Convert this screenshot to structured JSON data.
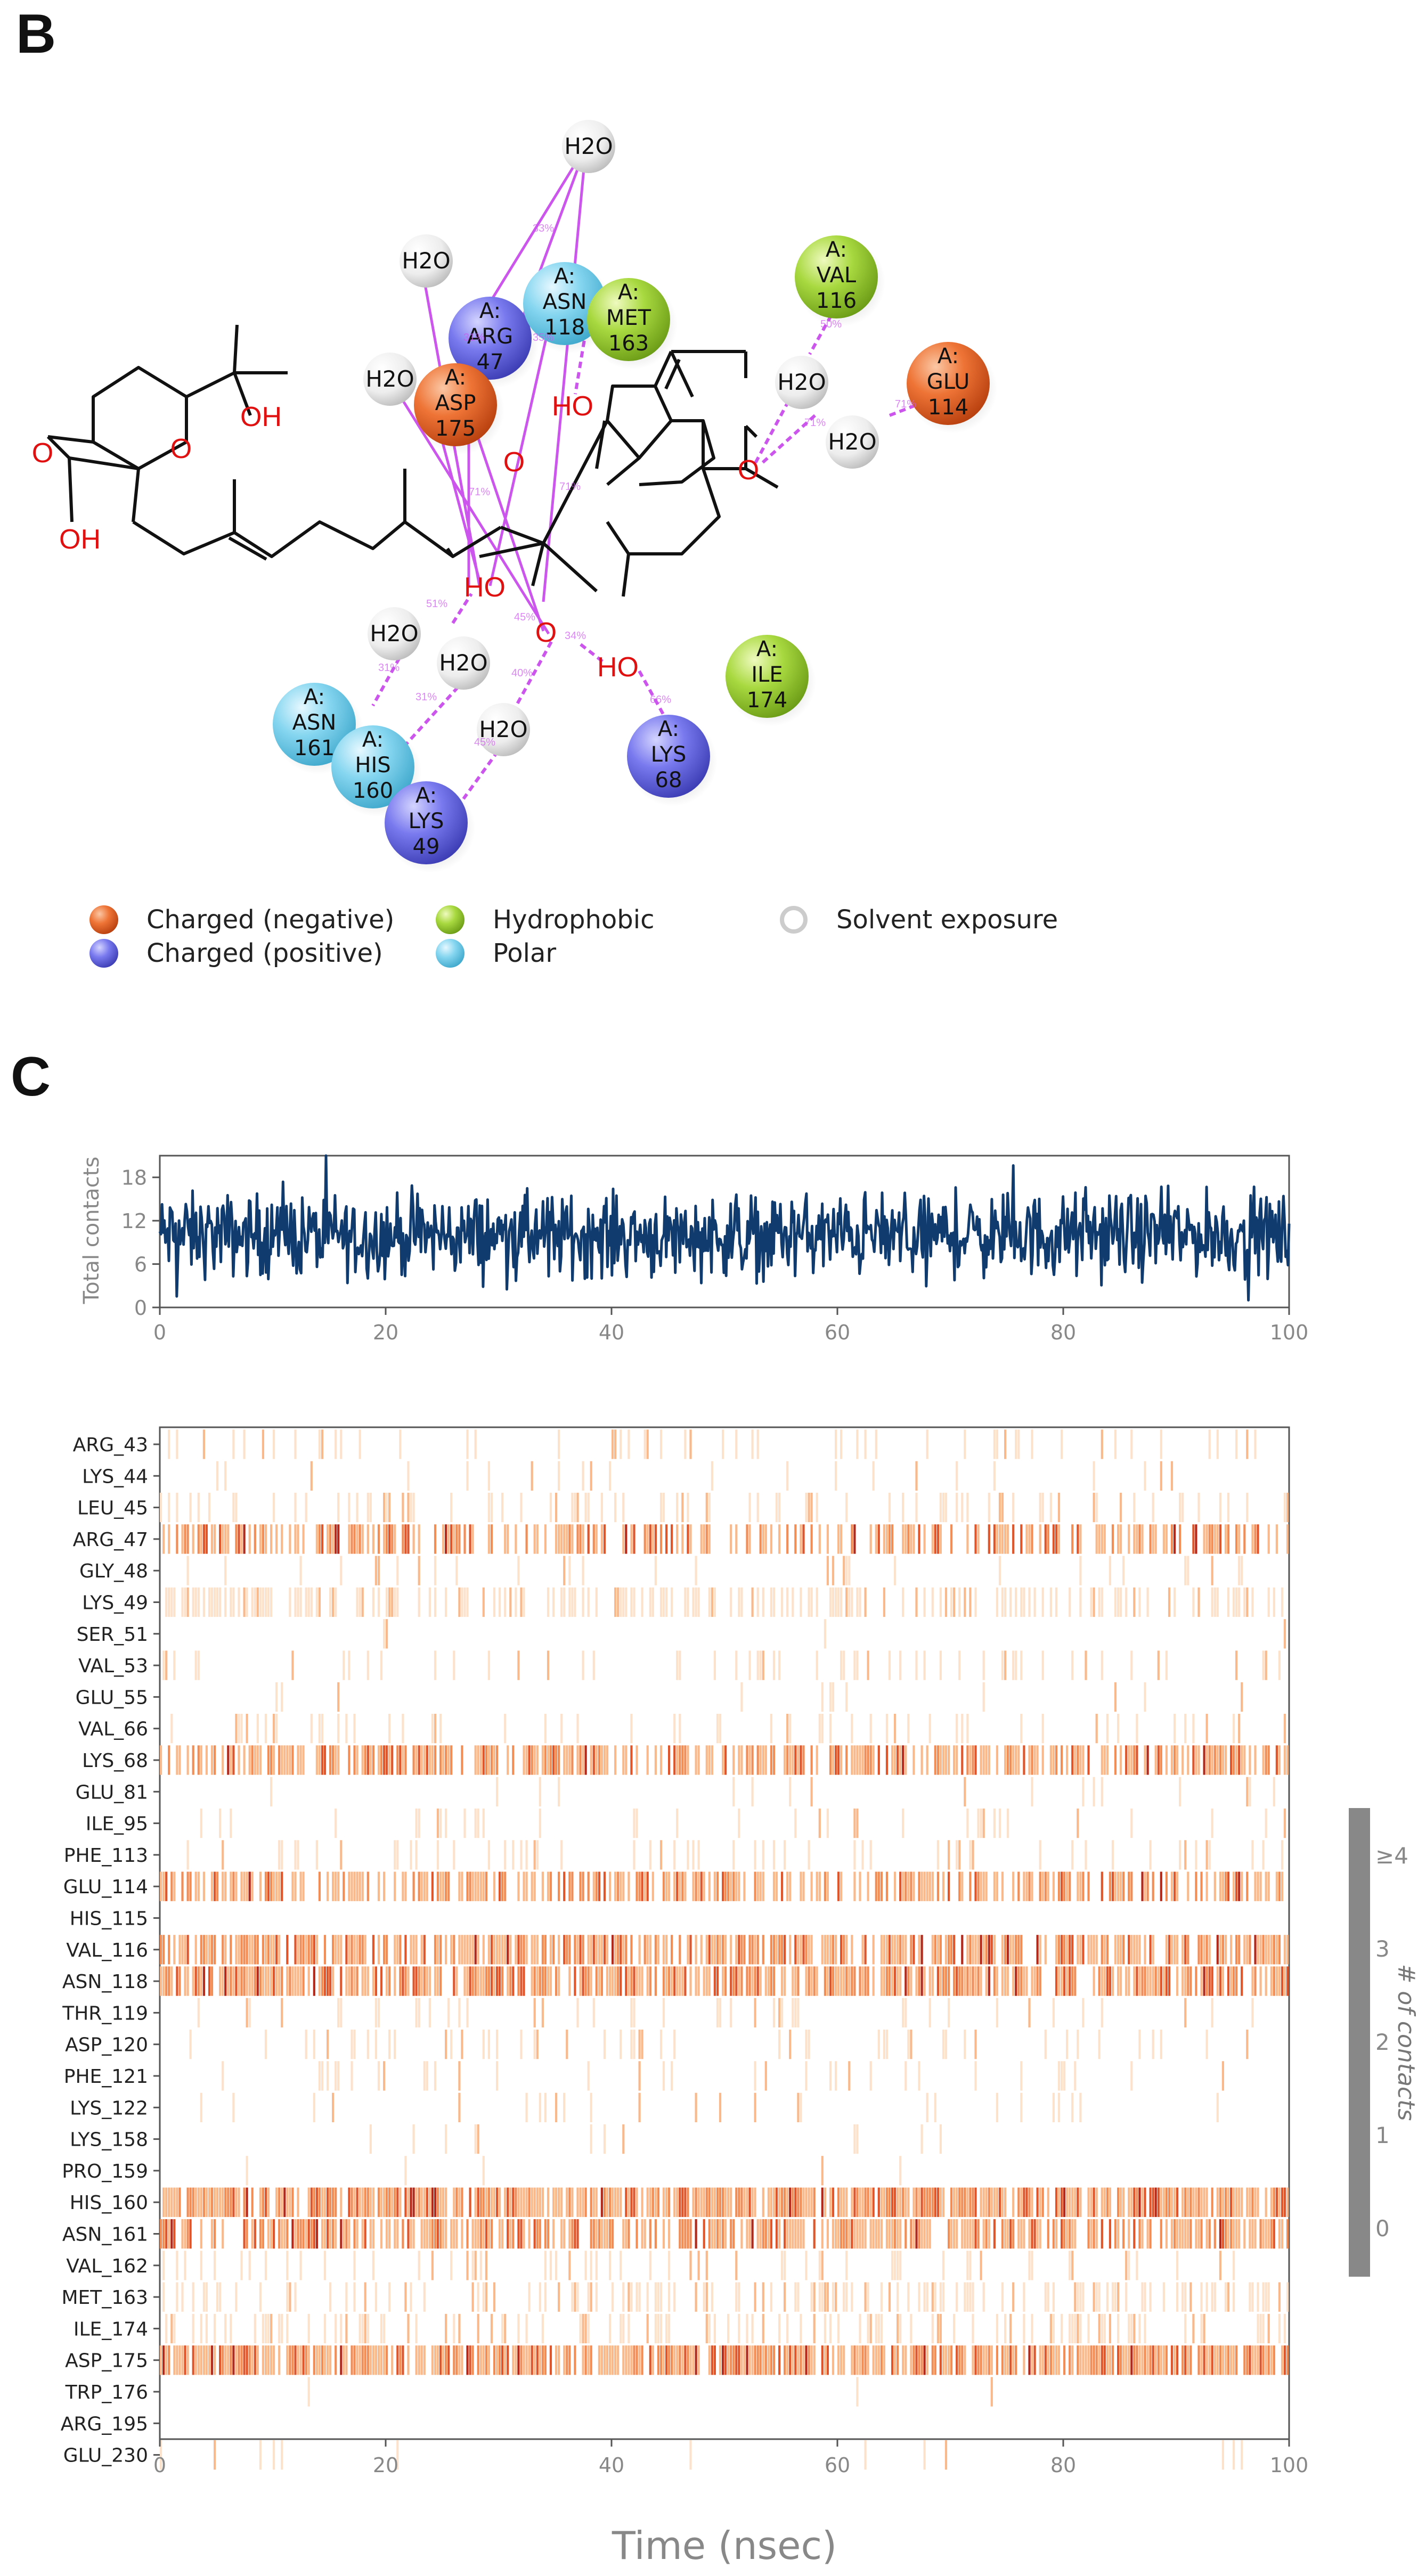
{
  "panels": {
    "b": "B",
    "c": "C"
  },
  "ligand_diagram": {
    "residues": [
      {
        "chain": "A:",
        "name": "ARG",
        "num": "47",
        "kind": "positive"
      },
      {
        "chain": "A:",
        "name": "ASN",
        "num": "118",
        "kind": "polar"
      },
      {
        "chain": "A:",
        "name": "MET",
        "num": "163",
        "kind": "hydrophobic"
      },
      {
        "chain": "A:",
        "name": "ASP",
        "num": "175",
        "kind": "negative"
      },
      {
        "chain": "A:",
        "name": "VAL",
        "num": "116",
        "kind": "hydrophobic"
      },
      {
        "chain": "A:",
        "name": "GLU",
        "num": "114",
        "kind": "negative"
      },
      {
        "chain": "A:",
        "name": "ILE",
        "num": "174",
        "kind": "hydrophobic"
      },
      {
        "chain": "A:",
        "name": "ASN",
        "num": "161",
        "kind": "polar"
      },
      {
        "chain": "A:",
        "name": "HIS",
        "num": "160",
        "kind": "polar"
      },
      {
        "chain": "A:",
        "name": "LYS",
        "num": "49",
        "kind": "positive"
      },
      {
        "chain": "A:",
        "name": "LYS",
        "num": "68",
        "kind": "positive"
      }
    ],
    "water_label": "H2O",
    "atom_labels": {
      "ho": "HO",
      "oh": "OH",
      "o": "O"
    },
    "percent_labels": [
      "33%",
      "71%",
      "71%",
      "51%",
      "45%",
      "31%",
      "31%",
      "50%",
      "71%",
      "71%",
      "66%",
      "40%",
      "34%",
      "45%",
      "31%",
      "35%"
    ],
    "legend": [
      {
        "label": "Charged (negative)",
        "kind": "negative"
      },
      {
        "label": "Charged (positive)",
        "kind": "positive"
      },
      {
        "label": "Hydrophobic",
        "kind": "hydrophobic"
      },
      {
        "label": "Polar",
        "kind": "polar"
      },
      {
        "label": "Solvent exposure",
        "kind": "solvent"
      }
    ],
    "colors": {
      "negative": "#e8602a",
      "positive": "#6a6ae6",
      "hydrophobic": "#9fd23a",
      "polar": "#7fd2ec",
      "solvent": "#dcdcdc",
      "interaction": "#cc55ee"
    }
  },
  "chart_data": [
    {
      "type": "line",
      "title": "",
      "ylabel": "Total contacts",
      "xlabel": "",
      "xlim": [
        0,
        100
      ],
      "ylim": [
        0,
        21
      ],
      "yticks": [
        0,
        6,
        12,
        18
      ],
      "xticks": [
        0,
        20,
        40,
        60,
        80,
        100
      ],
      "series": [
        {
          "name": "Total contacts",
          "color": "#0f3b6e",
          "mean": 10,
          "min": 1,
          "max": 21,
          "n_points": 1000
        }
      ]
    },
    {
      "type": "heatmap",
      "xlabel": "Time (nsec)",
      "xlim": [
        0,
        100
      ],
      "xticks": [
        0,
        20,
        40,
        60,
        80,
        100
      ],
      "rows": [
        "ARG_43",
        "LYS_44",
        "LEU_45",
        "ARG_47",
        "GLY_48",
        "LYS_49",
        "SER_51",
        "VAL_53",
        "GLU_55",
        "VAL_66",
        "LYS_68",
        "GLU_81",
        "ILE_95",
        "PHE_113",
        "GLU_114",
        "HIS_115",
        "VAL_116",
        "ASN_118",
        "THR_119",
        "ASP_120",
        "PHE_121",
        "LYS_122",
        "LYS_158",
        "PRO_159",
        "HIS_160",
        "ASN_161",
        "VAL_162",
        "MET_163",
        "ILE_174",
        "ASP_175",
        "TRP_176",
        "ARG_195",
        "GLU_230"
      ],
      "row_density": [
        0.1,
        0.05,
        0.18,
        0.5,
        0.08,
        0.4,
        0.01,
        0.14,
        0.02,
        0.14,
        0.65,
        0.05,
        0.07,
        0.14,
        0.6,
        0.0,
        0.7,
        0.75,
        0.1,
        0.1,
        0.08,
        0.06,
        0.03,
        0.01,
        0.8,
        0.65,
        0.15,
        0.35,
        0.3,
        0.8,
        0.01,
        0.0,
        0.04
      ],
      "colorbar": {
        "label": "# of contacts",
        "ticks": [
          "0",
          "1",
          "2",
          "3",
          "≥4"
        ]
      }
    }
  ]
}
